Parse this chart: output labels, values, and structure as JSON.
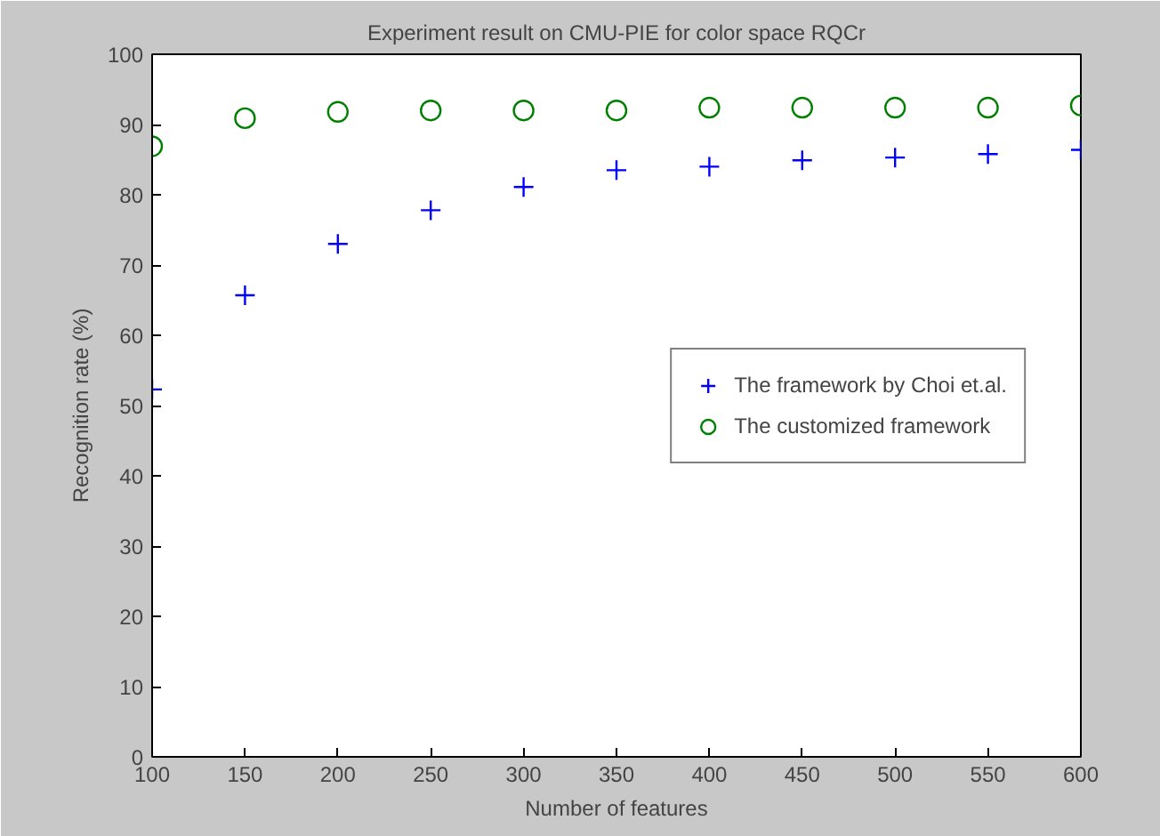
{
  "chart_data": {
    "type": "scatter",
    "title": "Experiment result on CMU-PIE for color space RQCr",
    "xlabel": "Number of features",
    "ylabel": "Recognition rate (%)",
    "x": [
      100,
      150,
      200,
      250,
      300,
      350,
      400,
      450,
      500,
      550,
      600
    ],
    "series": [
      {
        "name": "The framework by Choi et.al.",
        "color": "#0000ff",
        "marker": "cross",
        "values": [
          52.3,
          65.7,
          73.0,
          77.8,
          81.1,
          83.5,
          84.0,
          84.9,
          85.3,
          85.8,
          86.4
        ]
      },
      {
        "name": "The customized framework",
        "color": "#008000",
        "marker": "circle",
        "values": [
          86.9,
          90.9,
          91.8,
          92.0,
          92.0,
          92.0,
          92.4,
          92.4,
          92.4,
          92.4,
          92.7
        ]
      }
    ],
    "xlim": [
      100,
      600
    ],
    "ylim": [
      0,
      100
    ],
    "xticks": [
      100,
      150,
      200,
      250,
      300,
      350,
      400,
      450,
      500,
      550,
      600
    ],
    "yticks": [
      0,
      10,
      20,
      30,
      40,
      50,
      60,
      70,
      80,
      90,
      100
    ],
    "grid": false,
    "legend": "right"
  }
}
